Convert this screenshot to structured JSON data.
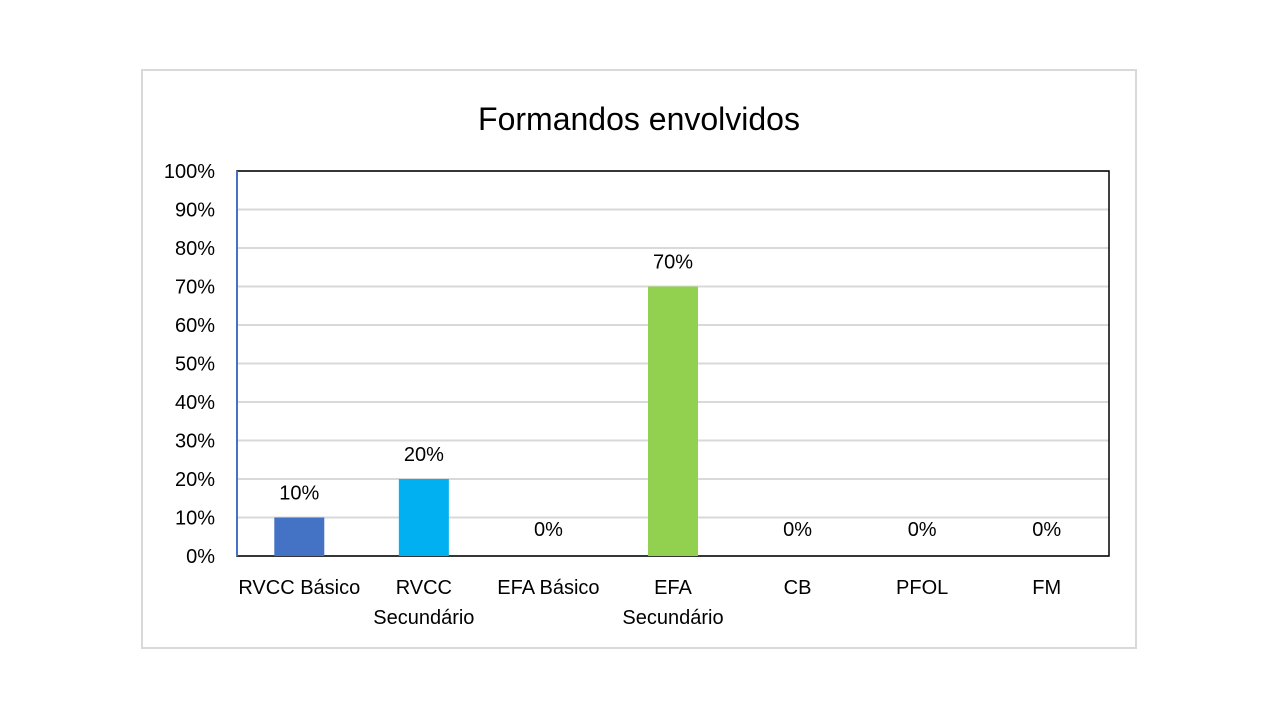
{
  "chart_data": {
    "type": "bar",
    "title": "Formandos envolvidos",
    "categories": [
      [
        "RVCC Básico"
      ],
      [
        "RVCC",
        "Secundário"
      ],
      [
        "EFA Básico"
      ],
      [
        "EFA",
        "Secundário"
      ],
      [
        "CB"
      ],
      [
        "PFOL"
      ],
      [
        "FM"
      ]
    ],
    "values": [
      10,
      20,
      0,
      70,
      0,
      0,
      0
    ],
    "data_labels": [
      "10%",
      "20%",
      "0%",
      "70%",
      "0%",
      "0%",
      "0%"
    ],
    "colors": [
      "#4472c4",
      "#00b0f0",
      "#92d050",
      "#92d050",
      "#92d050",
      "#92d050",
      "#92d050"
    ],
    "ylim": [
      0,
      100
    ],
    "y_ticks": [
      0,
      10,
      20,
      30,
      40,
      50,
      60,
      70,
      80,
      90,
      100
    ],
    "y_tick_labels": [
      "0%",
      "10%",
      "20%",
      "30%",
      "40%",
      "50%",
      "60%",
      "70%",
      "80%",
      "90%",
      "100%"
    ],
    "xlabel": "",
    "ylabel": "",
    "grid": true,
    "gridline_color": "#d9d9d9",
    "legend": "none"
  }
}
